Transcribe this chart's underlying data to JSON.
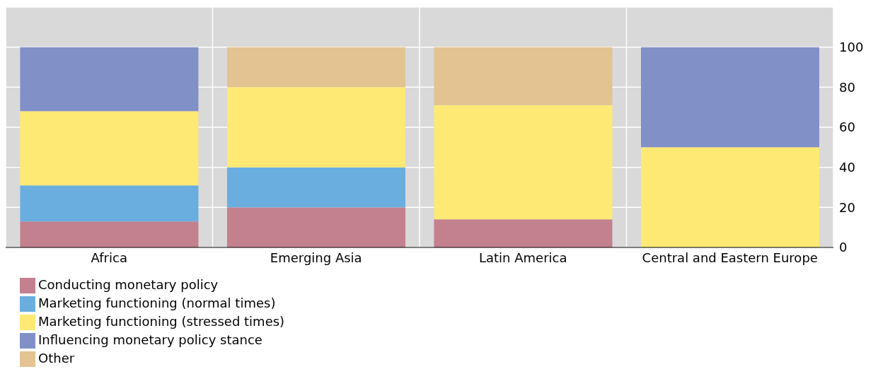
{
  "chart_data": {
    "type": "bar",
    "stacked": true,
    "categories": [
      "Africa",
      "Emerging Asia",
      "Latin America",
      "Central and Eastern Europe"
    ],
    "series": [
      {
        "name": "Conducting monetary policy",
        "color": "#c3808f",
        "values": [
          13,
          20,
          14,
          0
        ]
      },
      {
        "name": "Marketing functioning (normal times)",
        "color": "#6aaee0",
        "values": [
          18,
          20,
          0,
          0
        ]
      },
      {
        "name": "Marketing functioning (stressed times)",
        "color": "#ffe975",
        "values": [
          37,
          40,
          57,
          50
        ]
      },
      {
        "name": "Influencing monetary policy stance",
        "color": "#8290c8",
        "values": [
          32,
          0,
          0,
          50
        ]
      },
      {
        "name": "Other",
        "color": "#e2c391",
        "values": [
          0,
          20,
          29,
          0
        ]
      }
    ],
    "ylim": [
      0,
      120
    ],
    "yticks": [
      0,
      20,
      40,
      60,
      80,
      100
    ],
    "grid": true,
    "legend": "bottom left"
  }
}
